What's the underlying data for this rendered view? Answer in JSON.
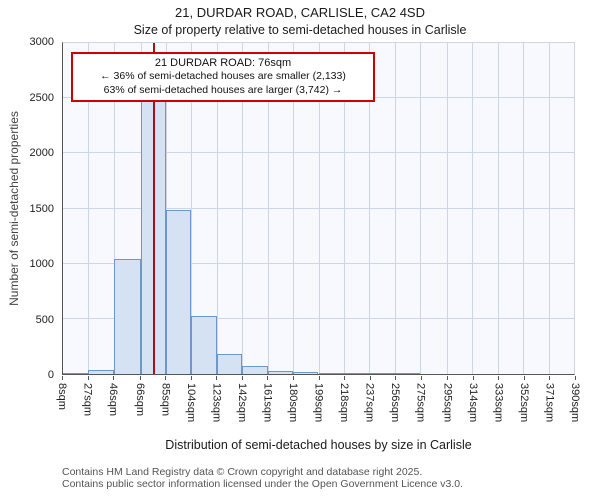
{
  "title": "21, DURDAR ROAD, CARLISLE, CA2 4SD",
  "subtitle": "Size of property relative to semi-detached houses in Carlisle",
  "annotation": {
    "line1": "21 DURDAR ROAD: 76sqm",
    "line2": "← 36% of semi-detached houses are smaller (2,133)",
    "line3": "63% of semi-detached houses are larger (3,742) →"
  },
  "footer": {
    "line1": "Contains HM Land Registry data © Crown copyright and database right 2025.",
    "line2": "Contains public sector information licensed under the Open Government Licence v3.0."
  },
  "chart_data": {
    "type": "bar",
    "title": "21, DURDAR ROAD, CARLISLE, CA2 4SD",
    "subtitle": "Size of property relative to semi-detached houses in Carlisle",
    "xlabel": "Distribution of semi-detached houses by size in Carlisle",
    "ylabel": "Number of semi-detached properties",
    "xlim": [
      8,
      390
    ],
    "ylim": [
      0,
      3000
    ],
    "yticks": [
      0,
      500,
      1000,
      1500,
      2000,
      2500,
      3000
    ],
    "bin_edges": [
      8,
      27,
      46,
      66,
      85,
      104,
      123,
      142,
      161,
      180,
      199,
      218,
      237,
      256,
      275,
      295,
      314,
      333,
      352,
      371,
      390
    ],
    "tick_labels": [
      "8sqm",
      "27sqm",
      "46sqm",
      "66sqm",
      "85sqm",
      "104sqm",
      "123sqm",
      "142sqm",
      "161sqm",
      "180sqm",
      "199sqm",
      "218sqm",
      "237sqm",
      "256sqm",
      "275sqm",
      "295sqm",
      "314sqm",
      "333sqm",
      "352sqm",
      "371sqm",
      "390sqm"
    ],
    "values": [
      5,
      40,
      1040,
      2500,
      1490,
      530,
      180,
      75,
      25,
      15,
      12,
      8,
      5,
      3,
      0,
      0,
      0,
      0,
      0,
      0
    ],
    "marker": {
      "value": 76,
      "label": "21 DURDAR ROAD: 76sqm"
    },
    "grid": true,
    "legend": "none",
    "colors": {
      "bar_fill": "#d4e2f4",
      "bar_border": "#6d96c9",
      "grid": "#ccd6e8",
      "plot_bg": "#f7f9fe",
      "marker": "#aa1111",
      "annotation_border": "#cc0000"
    }
  }
}
